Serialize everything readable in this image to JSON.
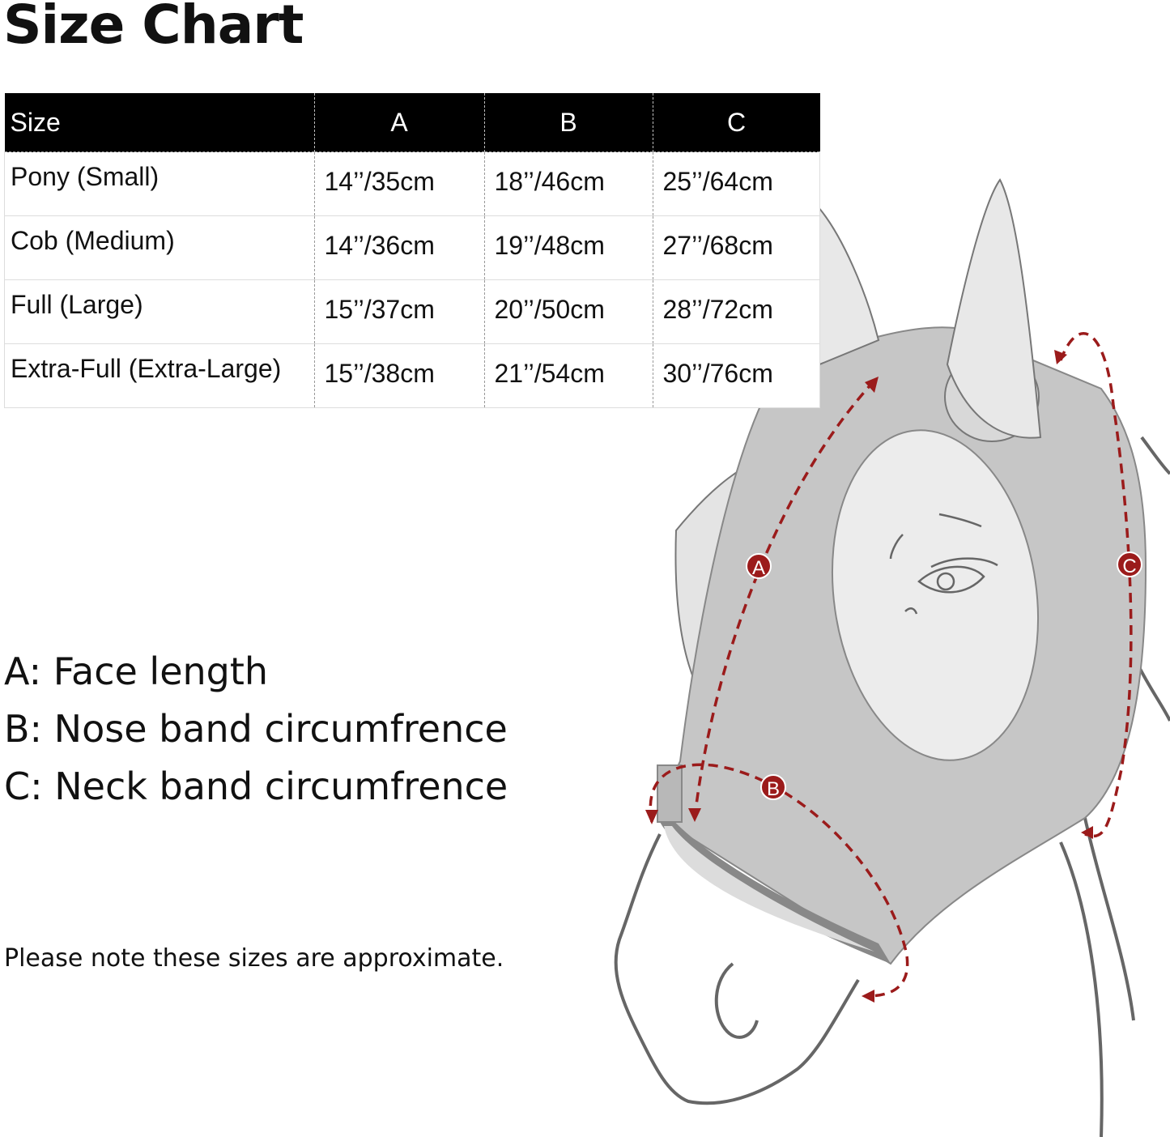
{
  "title": "Size Chart",
  "table": {
    "headers": [
      "Size",
      "A",
      "B",
      "C"
    ],
    "rows": [
      [
        "Pony (Small)",
        "14’’/35cm",
        "18’’/46cm",
        "25’’/64cm"
      ],
      [
        "Cob (Medium)",
        "14’’/36cm",
        "19’’/48cm",
        "27’’/68cm"
      ],
      [
        "Full (Large)",
        "15’’/37cm",
        "20’’/50cm",
        "28’’/72cm"
      ],
      [
        "Extra-Full (Extra-Large)",
        "15’’/38cm",
        "21’’/54cm",
        "30’’/76cm"
      ]
    ]
  },
  "legend": [
    "A: Face length",
    "B: Nose band circumfrence",
    "C: Neck band circumfrence"
  ],
  "note": "Please note these sizes are approximate.",
  "diagram": {
    "markers": [
      "A",
      "B",
      "C"
    ],
    "colors": {
      "mask": "#c6c6c6",
      "ear": "#e8e8e8",
      "measure": "#9b1b1b",
      "outline": "#666666"
    }
  }
}
